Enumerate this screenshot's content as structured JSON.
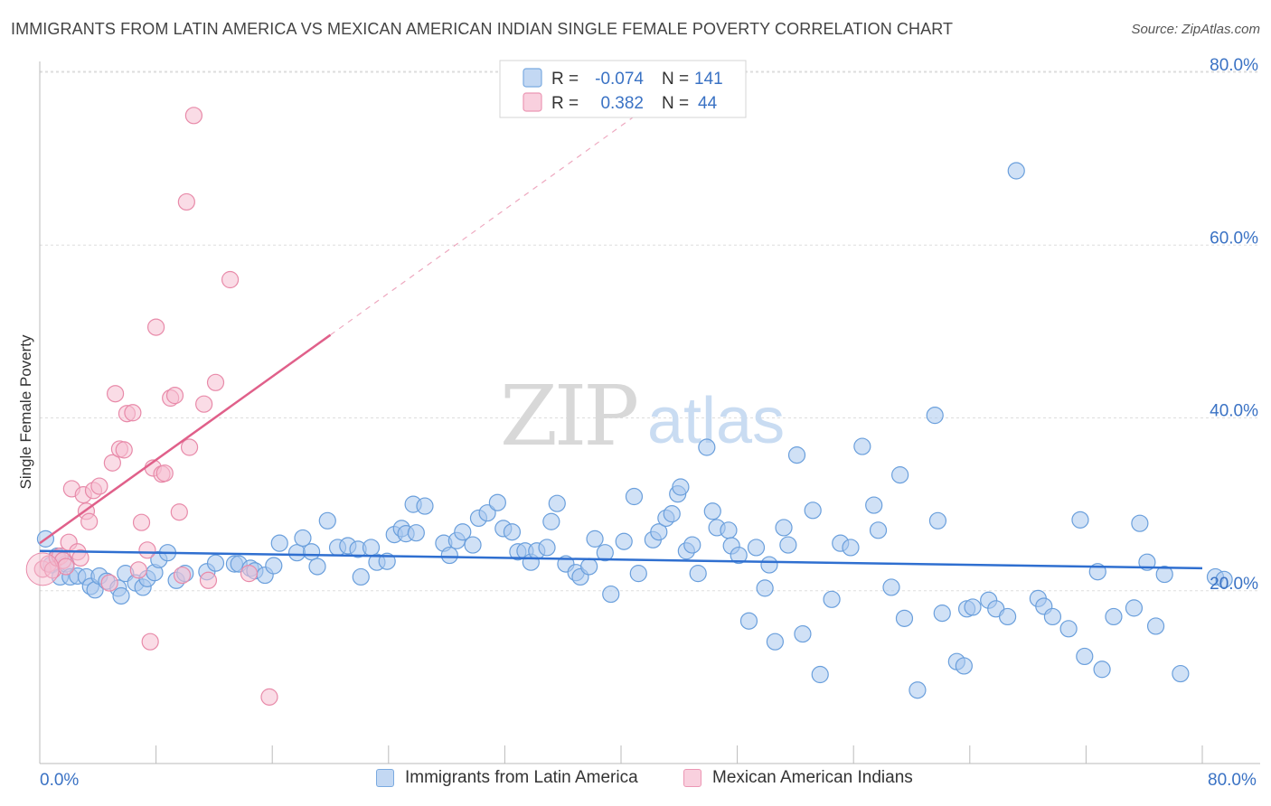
{
  "title": "IMMIGRANTS FROM LATIN AMERICA VS MEXICAN AMERICAN INDIAN SINGLE FEMALE POVERTY CORRELATION CHART",
  "source": "Source: ZipAtlas.com",
  "watermark": {
    "zip": "ZIP",
    "atlas": "atlas"
  },
  "x_axis": {
    "left_label": "0.0%",
    "right_label": "80.0%"
  },
  "stats": [
    {
      "r_label": "R =",
      "r_value": "-0.074",
      "n_label": "N =",
      "n_value": "141"
    },
    {
      "r_label": "R =",
      "r_value": "0.382",
      "n_label": "N =",
      "n_value": "44"
    }
  ],
  "colors": {
    "blue_fill": "#a9c8ef",
    "blue_stroke": "#6a9fdc",
    "blue_line": "#2f6fd0",
    "pink_fill": "#f6bfd1",
    "pink_stroke": "#e88aa9",
    "pink_line": "#e0608a",
    "tick_label": "#3a72c4",
    "grid": "#dddddd"
  },
  "chart_data": {
    "type": "scatter",
    "xlabel": "",
    "ylabel": "Single Female Poverty",
    "xlim": [
      0,
      80
    ],
    "ylim": [
      0,
      80
    ],
    "y_ticks": [
      {
        "value": 20,
        "label": "20.0%"
      },
      {
        "value": 40,
        "label": "40.0%"
      },
      {
        "value": 60,
        "label": "60.0%"
      },
      {
        "value": 80,
        "label": "80.0%"
      }
    ],
    "grid": true,
    "legend_position": "bottom",
    "series": [
      {
        "name": "Immigrants from Latin America",
        "color": "#a9c8ef",
        "trend": {
          "x0": 0,
          "y0": 24.6,
          "x1": 80,
          "y1": 22.6
        },
        "points": [
          [
            0.4,
            26
          ],
          [
            0.8,
            23
          ],
          [
            1.2,
            24
          ],
          [
            1.4,
            21.6
          ],
          [
            1.8,
            23.1
          ],
          [
            2.1,
            21.6
          ],
          [
            2.6,
            21.7
          ],
          [
            3.2,
            21.6
          ],
          [
            3.5,
            20.5
          ],
          [
            3.8,
            20.1
          ],
          [
            4.1,
            21.7
          ],
          [
            4.6,
            21.1
          ],
          [
            5.4,
            20.3
          ],
          [
            5.6,
            19.4
          ],
          [
            5.9,
            22
          ],
          [
            6.6,
            20.9
          ],
          [
            7.1,
            20.4
          ],
          [
            7.4,
            21.4
          ],
          [
            7.9,
            22.1
          ],
          [
            8.2,
            23.6
          ],
          [
            8.8,
            24.4
          ],
          [
            9.4,
            21.2
          ],
          [
            10,
            22
          ],
          [
            11.5,
            22.2
          ],
          [
            12.1,
            23.2
          ],
          [
            13.4,
            23.1
          ],
          [
            13.7,
            23.1
          ],
          [
            14.5,
            22.6
          ],
          [
            14.8,
            22.3
          ],
          [
            15.5,
            21.8
          ],
          [
            16.1,
            22.9
          ],
          [
            16.5,
            25.5
          ],
          [
            17.7,
            24.4
          ],
          [
            18.1,
            26.1
          ],
          [
            18.7,
            24.5
          ],
          [
            19.1,
            22.8
          ],
          [
            19.8,
            28.1
          ],
          [
            20.5,
            25
          ],
          [
            21.2,
            25.2
          ],
          [
            21.9,
            24.8
          ],
          [
            22.1,
            21.6
          ],
          [
            22.8,
            25
          ],
          [
            23.2,
            23.3
          ],
          [
            23.9,
            23.4
          ],
          [
            24.4,
            26.5
          ],
          [
            24.9,
            27.2
          ],
          [
            25.2,
            26.6
          ],
          [
            25.9,
            26.7
          ],
          [
            25.7,
            30
          ],
          [
            26.5,
            29.8
          ],
          [
            27.8,
            25.5
          ],
          [
            28.2,
            24.1
          ],
          [
            28.7,
            25.8
          ],
          [
            29.1,
            26.8
          ],
          [
            29.8,
            25.3
          ],
          [
            30.2,
            28.4
          ],
          [
            30.8,
            29
          ],
          [
            31.5,
            30.2
          ],
          [
            31.9,
            27.2
          ],
          [
            32.5,
            26.8
          ],
          [
            32.9,
            24.5
          ],
          [
            33.4,
            24.6
          ],
          [
            33.8,
            23.3
          ],
          [
            34.2,
            24.6
          ],
          [
            34.9,
            25
          ],
          [
            35.2,
            28
          ],
          [
            35.6,
            30.1
          ],
          [
            36.2,
            23.1
          ],
          [
            36.9,
            22.1
          ],
          [
            37.2,
            21.6
          ],
          [
            37.8,
            22.8
          ],
          [
            38.2,
            26
          ],
          [
            38.9,
            24.4
          ],
          [
            39.3,
            19.6
          ],
          [
            40.2,
            25.7
          ],
          [
            40.9,
            30.9
          ],
          [
            41.2,
            22
          ],
          [
            42.2,
            25.9
          ],
          [
            42.6,
            26.8
          ],
          [
            43.1,
            28.4
          ],
          [
            43.5,
            28.9
          ],
          [
            43.9,
            31.2
          ],
          [
            44.1,
            32
          ],
          [
            44.5,
            24.6
          ],
          [
            44.9,
            25.3
          ],
          [
            45.3,
            22
          ],
          [
            45.9,
            36.6
          ],
          [
            46.3,
            29.2
          ],
          [
            46.6,
            27.3
          ],
          [
            47.4,
            27
          ],
          [
            47.6,
            25.2
          ],
          [
            48.1,
            24.1
          ],
          [
            48.8,
            16.5
          ],
          [
            49.3,
            25
          ],
          [
            49.9,
            20.3
          ],
          [
            50.2,
            23
          ],
          [
            50.6,
            14.1
          ],
          [
            51.2,
            27.3
          ],
          [
            51.5,
            25.3
          ],
          [
            52.1,
            35.7
          ],
          [
            52.5,
            15
          ],
          [
            53.2,
            29.3
          ],
          [
            53.7,
            10.3
          ],
          [
            54.5,
            19
          ],
          [
            55.1,
            25.5
          ],
          [
            55.8,
            25
          ],
          [
            56.6,
            36.7
          ],
          [
            57.4,
            29.9
          ],
          [
            57.7,
            27
          ],
          [
            58.6,
            20.4
          ],
          [
            59.2,
            33.4
          ],
          [
            59.5,
            16.8
          ],
          [
            60.4,
            8.5
          ],
          [
            61.6,
            40.3
          ],
          [
            61.8,
            28.1
          ],
          [
            62.1,
            17.4
          ],
          [
            63.1,
            11.8
          ],
          [
            63.6,
            11.3
          ],
          [
            63.8,
            17.9
          ],
          [
            64.2,
            18.1
          ],
          [
            65.3,
            18.9
          ],
          [
            65.8,
            17.9
          ],
          [
            66.6,
            17
          ],
          [
            67.2,
            68.6
          ],
          [
            68.7,
            19.1
          ],
          [
            69.1,
            18.2
          ],
          [
            69.7,
            17
          ],
          [
            70.8,
            15.6
          ],
          [
            71.6,
            28.2
          ],
          [
            71.9,
            12.4
          ],
          [
            72.8,
            22.2
          ],
          [
            73.1,
            10.9
          ],
          [
            73.9,
            17
          ],
          [
            75.3,
            18
          ],
          [
            75.7,
            27.8
          ],
          [
            76.2,
            23.3
          ],
          [
            76.8,
            15.9
          ],
          [
            77.4,
            21.9
          ],
          [
            78.5,
            10.4
          ],
          [
            80.9,
            21.6
          ],
          [
            81.5,
            21.3
          ]
        ]
      },
      {
        "name": "Mexican American Indians",
        "color": "#f6bfd1",
        "trend": {
          "x0": 0,
          "y0": 25.5,
          "x1": 20,
          "y1": 49.6
        },
        "trend_extension": {
          "x0": 20,
          "y0": 49.6,
          "x1": 41,
          "y1": 75
        },
        "points": [
          [
            0.2,
            22.5
          ],
          [
            0.6,
            23.1
          ],
          [
            0.9,
            22.4
          ],
          [
            1.2,
            23.8
          ],
          [
            1.4,
            24
          ],
          [
            1.6,
            23.5
          ],
          [
            1.8,
            22.8
          ],
          [
            2,
            25.6
          ],
          [
            2.2,
            31.8
          ],
          [
            2.6,
            24.5
          ],
          [
            2.8,
            23.8
          ],
          [
            3,
            31.1
          ],
          [
            3.2,
            29.2
          ],
          [
            3.4,
            28
          ],
          [
            3.7,
            31.6
          ],
          [
            4.1,
            32.1
          ],
          [
            4.8,
            20.9
          ],
          [
            5,
            34.8
          ],
          [
            5.2,
            42.8
          ],
          [
            5.5,
            36.4
          ],
          [
            5.8,
            36.3
          ],
          [
            6,
            40.5
          ],
          [
            6.4,
            40.6
          ],
          [
            6.8,
            22.4
          ],
          [
            7,
            27.9
          ],
          [
            7.4,
            24.7
          ],
          [
            7.6,
            14.1
          ],
          [
            7.8,
            34.2
          ],
          [
            8,
            50.5
          ],
          [
            8.4,
            33.5
          ],
          [
            8.6,
            33.6
          ],
          [
            9,
            42.3
          ],
          [
            9.3,
            42.6
          ],
          [
            9.6,
            29.1
          ],
          [
            9.8,
            21.8
          ],
          [
            10.1,
            65
          ],
          [
            10.3,
            36.6
          ],
          [
            10.6,
            75
          ],
          [
            11.3,
            41.6
          ],
          [
            11.6,
            21.2
          ],
          [
            12.1,
            44.1
          ],
          [
            13.1,
            56
          ],
          [
            14.4,
            22
          ],
          [
            15.8,
            7.7
          ]
        ]
      }
    ]
  }
}
